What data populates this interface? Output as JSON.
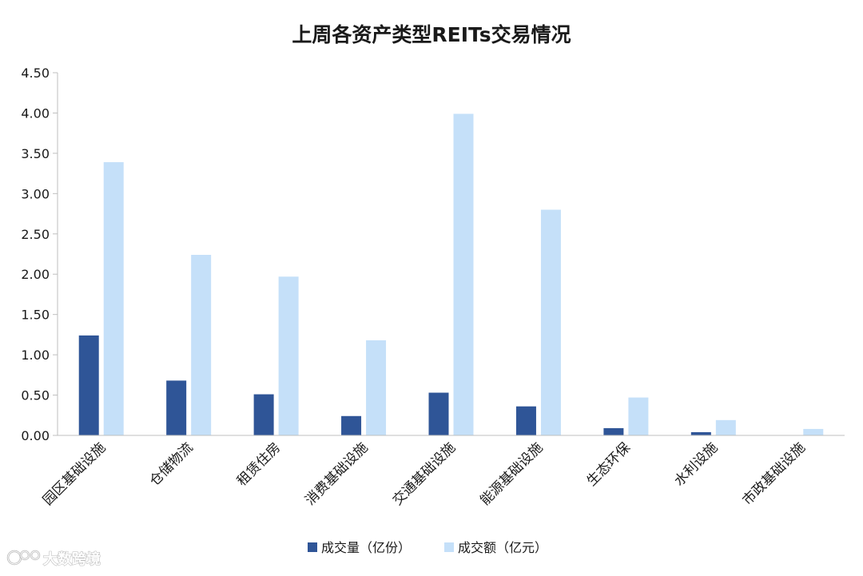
{
  "chart_data": {
    "type": "bar",
    "title": "上周各资产类型REITs交易情况",
    "categories": [
      "园区基础设施",
      "仓储物流",
      "租赁住房",
      "消费基础设施",
      "交通基础设施",
      "能源基础设施",
      "生态环保",
      "水利设施",
      "市政基础设施"
    ],
    "series": [
      {
        "name": "成交量（亿份）",
        "color": "#2f5597",
        "values": [
          1.24,
          0.68,
          0.51,
          0.24,
          0.53,
          0.36,
          0.09,
          0.04,
          0.0
        ]
      },
      {
        "name": "成交额（亿元）",
        "color": "#c5e0f9",
        "values": [
          3.39,
          2.24,
          1.97,
          1.18,
          3.99,
          2.8,
          0.47,
          0.19,
          0.08
        ]
      }
    ],
    "y_ticks": [
      "0.00",
      "0.50",
      "1.00",
      "1.50",
      "2.00",
      "2.50",
      "3.00",
      "3.50",
      "4.00",
      "4.50"
    ],
    "ylim": [
      0,
      4.5
    ],
    "xlabel": "",
    "ylabel": "",
    "grid": false,
    "legend_position": "bottom"
  },
  "watermark": {
    "text": "大数跨境",
    "icon": "logo-icon"
  }
}
